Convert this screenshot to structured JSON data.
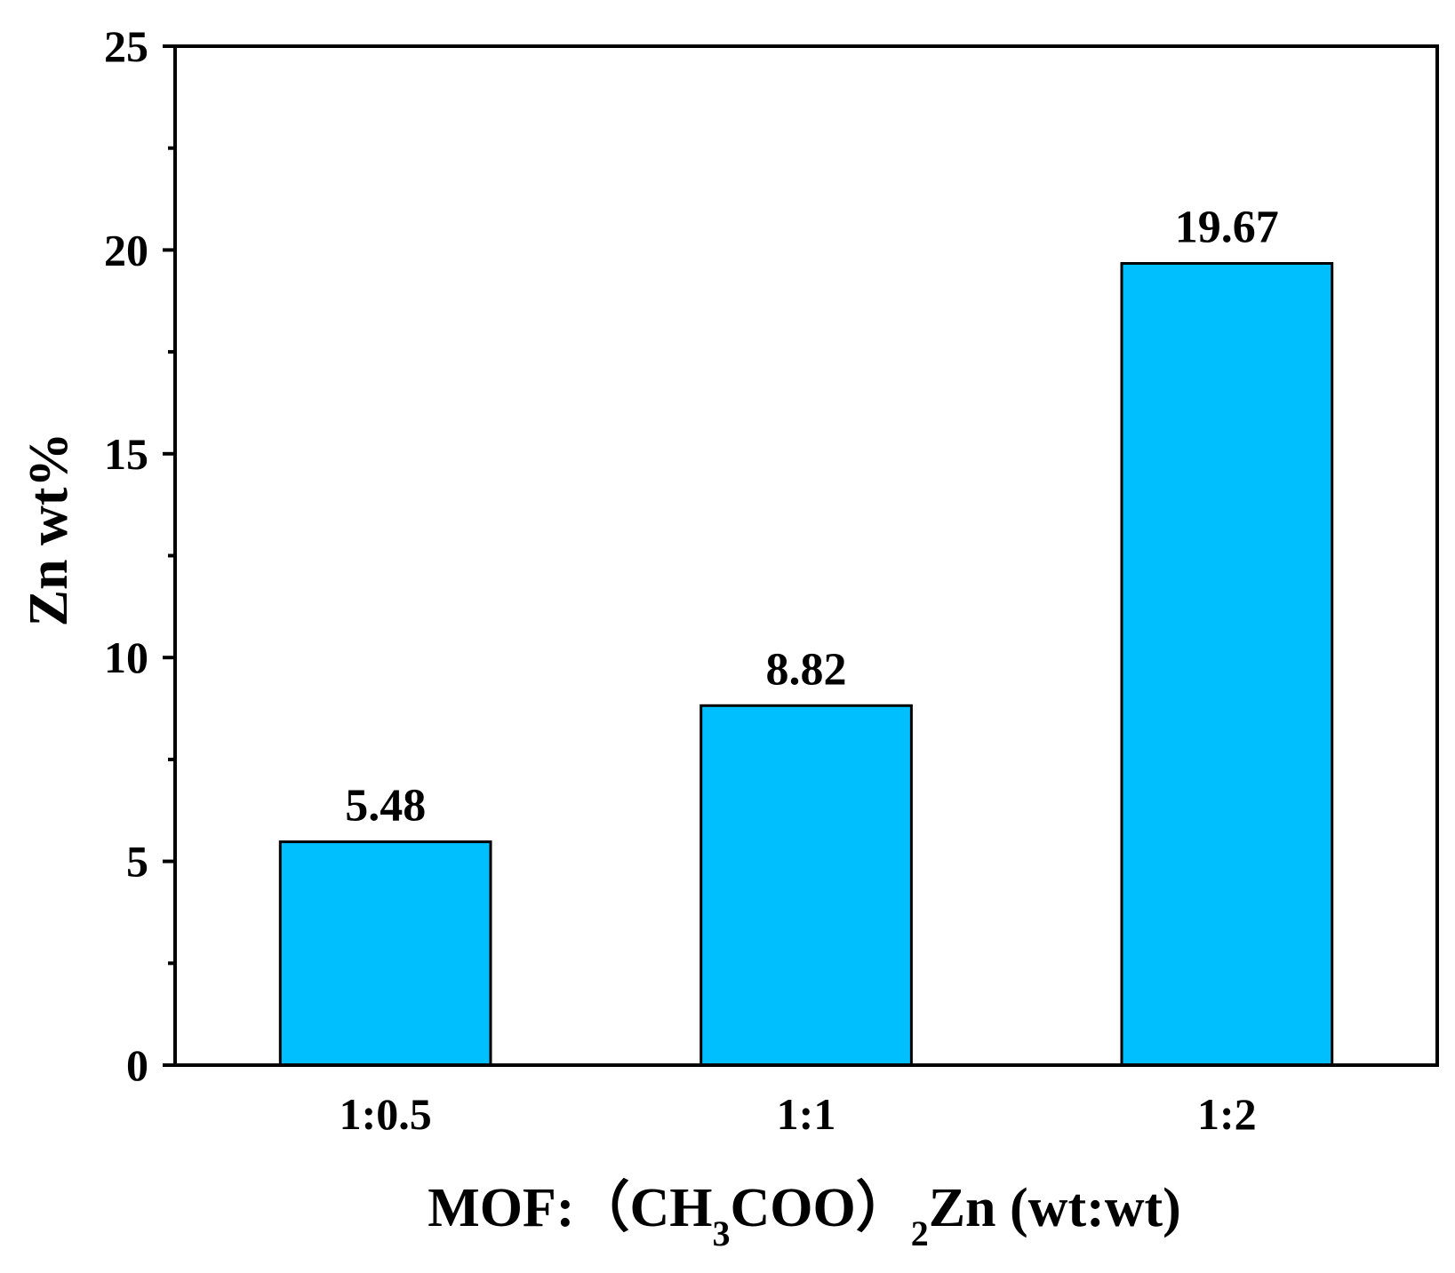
{
  "chart_data": {
    "type": "bar",
    "categories": [
      "1:0.5",
      "1:1",
      "1:2"
    ],
    "values": [
      5.48,
      8.82,
      19.67
    ],
    "value_labels": [
      "5.48",
      "8.82",
      "19.67"
    ],
    "title": "",
    "xlabel": {
      "prefix": "MOF:（CH",
      "sub1": "3",
      "middle": "COO）",
      "sub2": "2",
      "suffix": "Zn (wt:wt)"
    },
    "ylabel": "Zn wt%",
    "ylim": [
      0,
      25
    ],
    "yticks": [
      0,
      5,
      10,
      15,
      20,
      25
    ],
    "ytick_labels": [
      "0",
      "5",
      "10",
      "15",
      "20",
      "25"
    ],
    "grid": false,
    "legend": "none",
    "colors": {
      "bar_fill": "#00BFFF",
      "bar_edge": "#000000",
      "axis": "#000000"
    }
  }
}
